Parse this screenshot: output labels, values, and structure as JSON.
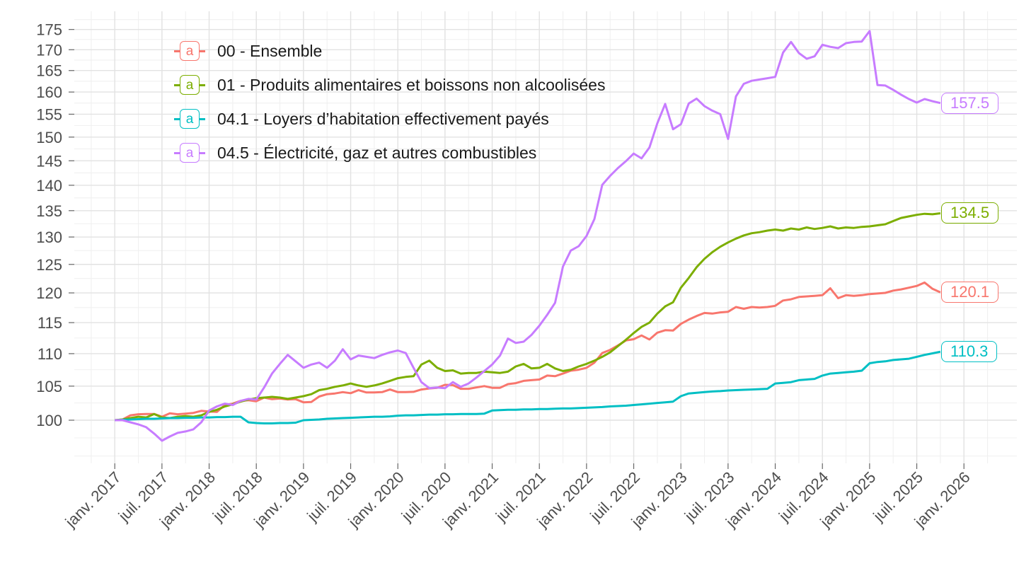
{
  "chart_data": {
    "type": "line",
    "title": "",
    "frequency": "monthly",
    "x_axis": {
      "first_point_label": "janv. 2017",
      "tick_labels": [
        "janv. 2017",
        "juil. 2017",
        "janv. 2018",
        "juil. 2018",
        "janv. 2019",
        "juil. 2019",
        "janv. 2020",
        "juil. 2020",
        "janv. 2021",
        "juil. 2021",
        "janv. 2022",
        "juil. 2022",
        "janv. 2023",
        "juil. 2023",
        "janv. 2024",
        "juil. 2024",
        "janv. 2025",
        "juil. 2025",
        "janv. 2026"
      ],
      "months_between_ticks": 6
    },
    "y_axis": {
      "scale": "log",
      "tick_labels": [
        "100",
        "105",
        "110",
        "115",
        "120",
        "125",
        "130",
        "135",
        "140",
        "145",
        "150",
        "155",
        "160",
        "165",
        "170",
        "175"
      ],
      "minor_gridlines": true
    },
    "legend_position": "top-left-inside",
    "grid": true,
    "series": [
      {
        "id": "ensemble-00",
        "label": "00 - Ensemble",
        "color": "#F8766D",
        "end_label": "120.1",
        "values": [
          100,
          100.1,
          100.7,
          100.85,
          100.9,
          100.9,
          100.5,
          101,
          100.85,
          100.95,
          101.05,
          101.35,
          101.25,
          101.2,
          102.2,
          102.4,
          102.8,
          102.9,
          102.75,
          103.3,
          103.05,
          103.15,
          103,
          103.05,
          102.6,
          102.65,
          103.45,
          103.8,
          103.9,
          104.1,
          103.95,
          104.4,
          104.05,
          104.05,
          104.1,
          104.5,
          104.1,
          104.1,
          104.15,
          104.5,
          104.65,
          104.75,
          105.2,
          105.15,
          104.6,
          104.6,
          104.8,
          105,
          104.75,
          104.75,
          105.3,
          105.45,
          105.8,
          105.9,
          106,
          106.6,
          106.5,
          106.9,
          107.35,
          107.5,
          107.8,
          108.6,
          110.1,
          110.6,
          111.3,
          112.1,
          112.3,
          112.9,
          112.25,
          113.35,
          113.75,
          113.7,
          114.8,
          115.5,
          116.1,
          116.6,
          116.5,
          116.7,
          116.8,
          117.6,
          117.3,
          117.6,
          117.5,
          117.6,
          117.8,
          118.7,
          118.9,
          119.3,
          119.4,
          119.5,
          119.6,
          120.8,
          119.1,
          119.6,
          119.5,
          119.6,
          119.8,
          119.9,
          120,
          120.4,
          120.6,
          120.9,
          121.2,
          121.8,
          120.7,
          120.1
        ]
      },
      {
        "id": "alimentaires-01",
        "label": "01 - Produits alimentaires et boissons non alcoolisées",
        "color": "#7CAE00",
        "end_label": "134.5",
        "values": [
          100,
          100.1,
          100.3,
          100.5,
          100.4,
          100.9,
          100.4,
          100.3,
          100.5,
          100.6,
          100.5,
          100.7,
          101.2,
          101.5,
          102,
          102.3,
          102.7,
          103,
          103.2,
          103.3,
          103.4,
          103.3,
          103.1,
          103.3,
          103.5,
          103.8,
          104.4,
          104.6,
          104.9,
          105.1,
          105.4,
          105.1,
          104.9,
          105.1,
          105.4,
          105.8,
          106.2,
          106.4,
          106.5,
          108.3,
          108.9,
          107.8,
          107.3,
          107.4,
          106.9,
          107,
          107,
          107.2,
          107.1,
          107,
          107.2,
          108,
          108.4,
          107.7,
          107.8,
          108.4,
          107.7,
          107.3,
          107.5,
          108,
          108.4,
          108.9,
          109.5,
          110.2,
          111.2,
          112.2,
          113.3,
          114.3,
          115,
          116.5,
          117.7,
          118.4,
          120.9,
          122.6,
          124.5,
          126,
          127.2,
          128.2,
          129,
          129.7,
          130.3,
          130.7,
          130.9,
          131.2,
          131.4,
          131.2,
          131.6,
          131.4,
          131.8,
          131.5,
          131.7,
          132,
          131.6,
          131.8,
          131.7,
          131.9,
          132,
          132.2,
          132.4,
          133,
          133.6,
          133.9,
          134.2,
          134.4,
          134.3,
          134.5
        ]
      },
      {
        "id": "loyers-04-1",
        "label": "04.1 - Loyers d’habitation effectivement payés",
        "color": "#00BFC4",
        "end_label": "110.3",
        "values": [
          100,
          100.05,
          100.1,
          100.15,
          100.2,
          100.2,
          100.25,
          100.3,
          100.3,
          100.35,
          100.35,
          100.4,
          100.4,
          100.45,
          100.45,
          100.5,
          100.5,
          99.7,
          99.6,
          99.55,
          99.55,
          99.6,
          99.6,
          99.65,
          100,
          100.05,
          100.1,
          100.2,
          100.25,
          100.3,
          100.35,
          100.4,
          100.45,
          100.5,
          100.5,
          100.55,
          100.65,
          100.7,
          100.7,
          100.75,
          100.8,
          100.8,
          100.85,
          100.85,
          100.9,
          100.9,
          100.9,
          100.95,
          101.4,
          101.45,
          101.5,
          101.5,
          101.55,
          101.55,
          101.6,
          101.6,
          101.65,
          101.7,
          101.7,
          101.75,
          101.8,
          101.85,
          101.9,
          102,
          102.05,
          102.1,
          102.2,
          102.3,
          102.4,
          102.5,
          102.6,
          102.7,
          103.5,
          103.9,
          104,
          104.1,
          104.2,
          104.25,
          104.35,
          104.4,
          104.45,
          104.5,
          104.55,
          104.6,
          105.4,
          105.5,
          105.6,
          105.9,
          106,
          106.1,
          106.6,
          106.9,
          107,
          107.1,
          107.2,
          107.35,
          108.5,
          108.7,
          108.8,
          109,
          109.1,
          109.2,
          109.5,
          109.8,
          110.05,
          110.3
        ]
      },
      {
        "id": "energie-04-5",
        "label": "04.5 - Électricité, gaz et autres combustibles",
        "color": "#C77CFF",
        "end_label": "157.5",
        "values": [
          100,
          100,
          99.7,
          99.4,
          99,
          98.1,
          97.1,
          97.7,
          98.2,
          98.4,
          98.7,
          99.7,
          101.4,
          102,
          102.4,
          102.2,
          102.8,
          103.1,
          103,
          104.8,
          106.9,
          108.4,
          109.8,
          108.8,
          107.8,
          108.3,
          108.6,
          107.8,
          108.9,
          110.7,
          109.1,
          109.7,
          109.5,
          109.3,
          109.8,
          110.2,
          110.5,
          110.1,
          107.8,
          105.6,
          104.7,
          104.8,
          104.7,
          105.6,
          104.9,
          105.4,
          106.3,
          107.3,
          108.3,
          109.7,
          112.4,
          111.7,
          111.9,
          113,
          114.5,
          116.3,
          118.3,
          124.6,
          127.5,
          128.3,
          130.2,
          133.4,
          140.1,
          141.9,
          143.5,
          144.9,
          146.5,
          145.5,
          147.8,
          153,
          157.3,
          151.7,
          152.8,
          157.4,
          158.5,
          156.8,
          155.8,
          155,
          149.6,
          159,
          161.9,
          162.6,
          162.9,
          163.2,
          163.5,
          169.3,
          171.9,
          169.2,
          167.8,
          168.4,
          171.2,
          170.7,
          170.4,
          171.6,
          171.9,
          172,
          174.6,
          161.6,
          161.5,
          160.5,
          159.4,
          158.4,
          157.6,
          158.4,
          157.9,
          157.5
        ]
      }
    ]
  }
}
